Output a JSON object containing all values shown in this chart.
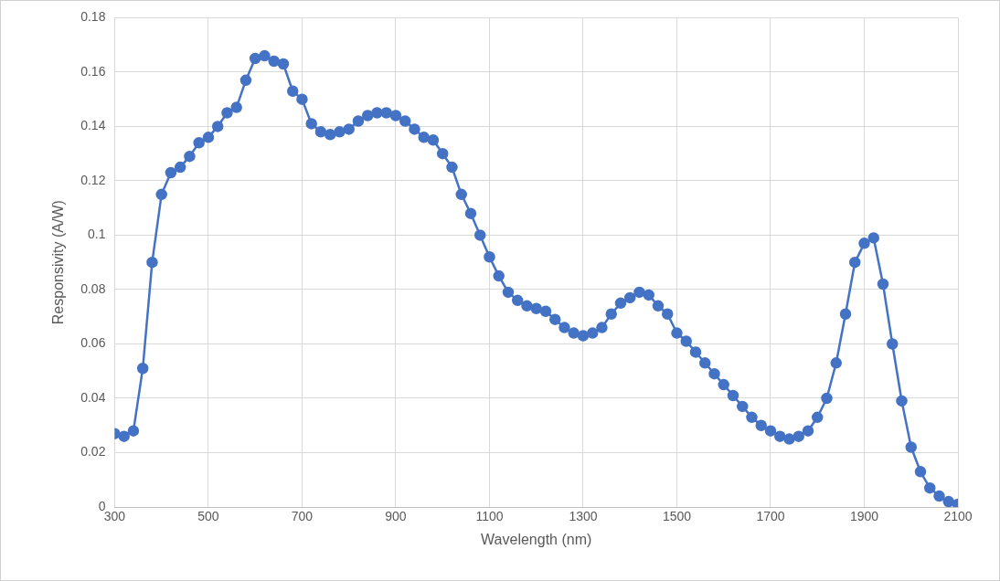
{
  "chart_data": {
    "type": "line",
    "xlabel": "Wavelength (nm)",
    "ylabel": "Responsivity (A/W)",
    "x": [
      300,
      320,
      340,
      360,
      380,
      400,
      420,
      440,
      460,
      480,
      500,
      520,
      540,
      560,
      580,
      600,
      620,
      640,
      660,
      680,
      700,
      720,
      740,
      760,
      780,
      800,
      820,
      840,
      860,
      880,
      900,
      920,
      940,
      960,
      980,
      1000,
      1020,
      1040,
      1060,
      1080,
      1100,
      1120,
      1140,
      1160,
      1180,
      1200,
      1220,
      1240,
      1260,
      1280,
      1300,
      1320,
      1340,
      1360,
      1380,
      1400,
      1420,
      1440,
      1460,
      1480,
      1500,
      1520,
      1540,
      1560,
      1580,
      1600,
      1620,
      1640,
      1660,
      1680,
      1700,
      1720,
      1740,
      1760,
      1780,
      1800,
      1820,
      1840,
      1860,
      1880,
      1900,
      1920,
      1940,
      1960,
      1980,
      2000,
      2020,
      2040,
      2060,
      2080,
      2100
    ],
    "series": [
      {
        "color": "#4472c4",
        "values": [
          0.027,
          0.026,
          0.028,
          0.051,
          0.09,
          0.115,
          0.123,
          0.125,
          0.129,
          0.134,
          0.136,
          0.14,
          0.145,
          0.147,
          0.157,
          0.165,
          0.166,
          0.164,
          0.163,
          0.153,
          0.15,
          0.141,
          0.138,
          0.137,
          0.138,
          0.139,
          0.142,
          0.144,
          0.145,
          0.145,
          0.144,
          0.142,
          0.139,
          0.136,
          0.135,
          0.13,
          0.125,
          0.115,
          0.108,
          0.1,
          0.092,
          0.085,
          0.079,
          0.076,
          0.074,
          0.073,
          0.072,
          0.069,
          0.066,
          0.064,
          0.063,
          0.064,
          0.066,
          0.071,
          0.075,
          0.077,
          0.079,
          0.078,
          0.074,
          0.071,
          0.064,
          0.061,
          0.057,
          0.053,
          0.049,
          0.045,
          0.041,
          0.037,
          0.033,
          0.03,
          0.028,
          0.026,
          0.025,
          0.026,
          0.028,
          0.033,
          0.04,
          0.053,
          0.071,
          0.09,
          0.097,
          0.099,
          0.082,
          0.06,
          0.039,
          0.022,
          0.013,
          0.007,
          0.004,
          0.002,
          0.001
        ]
      }
    ],
    "xlim": [
      300,
      2100
    ],
    "xticks": [
      300,
      500,
      700,
      900,
      1100,
      1300,
      1500,
      1700,
      1900,
      2100
    ],
    "ylim": [
      0,
      0.18
    ],
    "yticks": [
      0,
      0.02,
      0.04,
      0.06,
      0.08,
      0.1,
      0.12,
      0.14,
      0.16,
      0.18
    ],
    "grid": true,
    "legend": false,
    "marker": "circle",
    "line_style": "solid"
  }
}
